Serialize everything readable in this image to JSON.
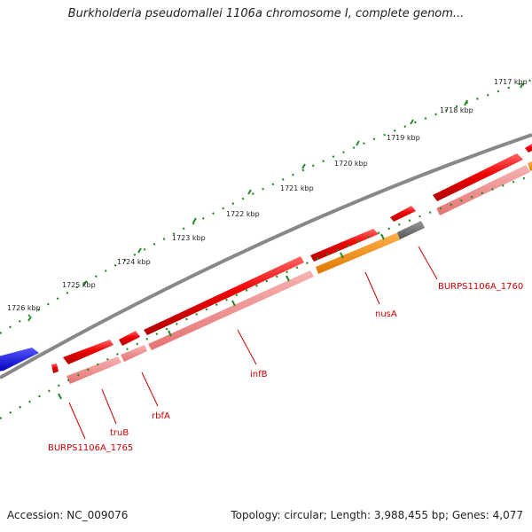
{
  "title": "Burkholderia pseudomallei 1106a chromosome I, complete genom...",
  "footer": {
    "accession": "Accession: NC_009076",
    "stats": "Topology: circular; Length: 3,988,455 bp; Genes: 4,077"
  },
  "ruler": {
    "ticks": [
      "1717 kbp",
      "1718 kbp",
      "1719 kbp",
      "1720 kbp",
      "1721 kbp",
      "1722 kbp",
      "1723 kbp",
      "1724 kbp",
      "1725 kbp",
      "1726 kbp"
    ]
  },
  "genes": {
    "labels": [
      "BURPS1106A_1760",
      "nusA",
      "infB",
      "rbfA",
      "truB",
      "BURPS1106A_1765"
    ]
  },
  "colors": {
    "gene": "#ee0000",
    "cds": "#f08080",
    "highlight": "#ff8c00",
    "other": "#707070",
    "neighbor": "#0000ee",
    "backbone": "#888888",
    "tick": "#228b22",
    "label": "#cc0000"
  }
}
